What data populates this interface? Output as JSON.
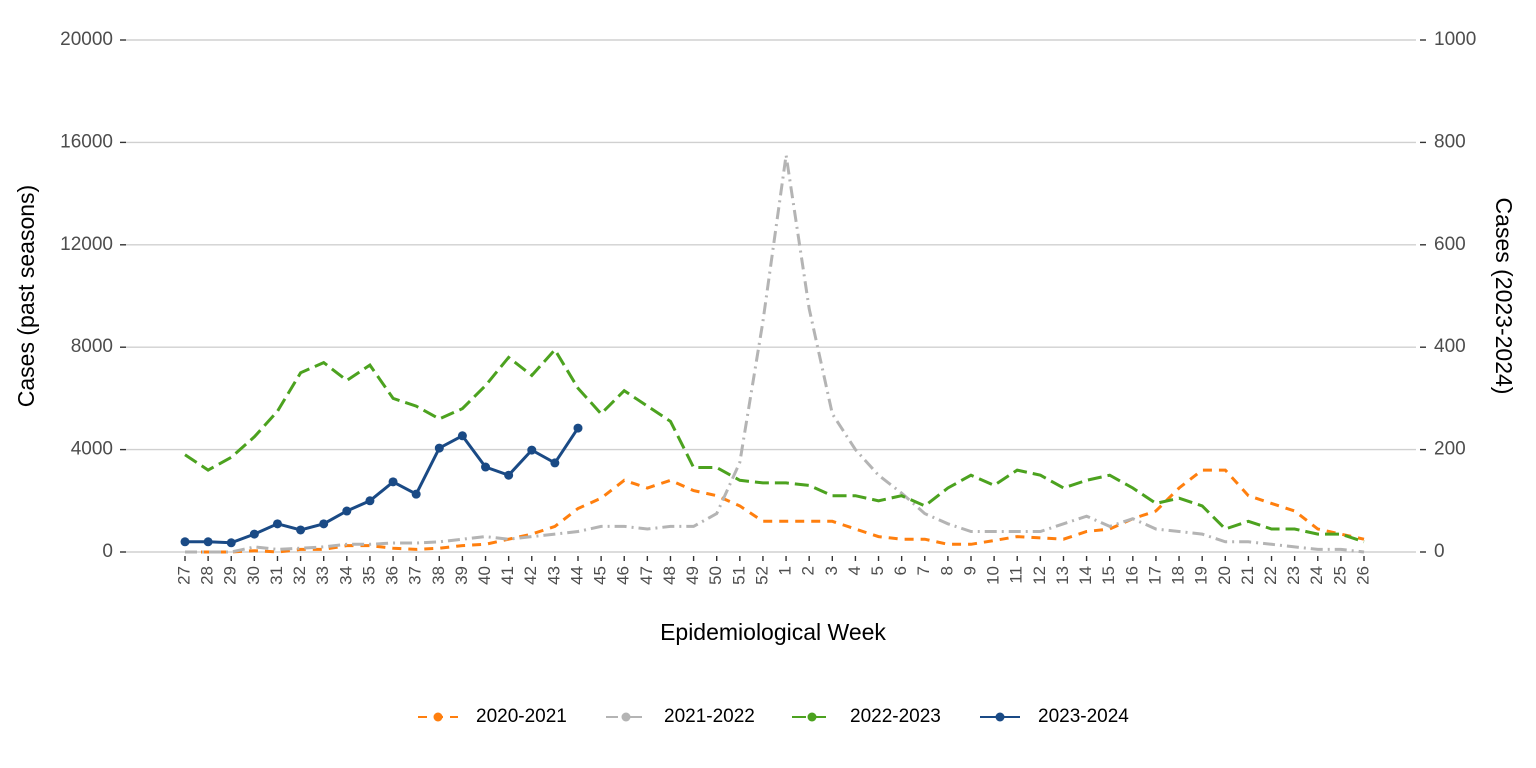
{
  "chart_data": {
    "type": "line",
    "x_label": "Epidemiological Week",
    "y_label": "Cases (past seasons)",
    "y2_label": "Cases (2023-2024)",
    "categories": [
      "27",
      "28",
      "29",
      "30",
      "31",
      "32",
      "33",
      "34",
      "35",
      "36",
      "37",
      "38",
      "39",
      "40",
      "41",
      "42",
      "43",
      "44",
      "45",
      "46",
      "47",
      "48",
      "49",
      "50",
      "51",
      "52",
      "1",
      "2",
      "3",
      "4",
      "5",
      "6",
      "7",
      "8",
      "9",
      "10",
      "11",
      "12",
      "13",
      "14",
      "15",
      "16",
      "17",
      "18",
      "19",
      "20",
      "21",
      "22",
      "23",
      "24",
      "25",
      "26"
    ],
    "ylim": [
      0,
      20000
    ],
    "yticks": [
      0,
      4000,
      8000,
      12000,
      16000,
      20000
    ],
    "y2lim": [
      0,
      1000
    ],
    "y2ticks": [
      0,
      200,
      400,
      600,
      800,
      1000
    ],
    "grid": true,
    "legend": "bottom",
    "series": [
      {
        "name": "2020-2021",
        "color": "#ff7f0e",
        "dash": "dashed",
        "values": [
          0,
          0,
          0,
          50,
          0,
          100,
          100,
          250,
          250,
          150,
          100,
          150,
          250,
          300,
          500,
          700,
          1000,
          1700,
          2100,
          2800,
          2500,
          2800,
          2400,
          2200,
          1800,
          1200,
          1200,
          1200,
          1200,
          900,
          600,
          500,
          500,
          300,
          300,
          450,
          600,
          550,
          500,
          800,
          900,
          1300,
          1600,
          2500,
          3200,
          3200,
          2200,
          1900,
          1600,
          900,
          700,
          500
        ]
      },
      {
        "name": "2021-2022",
        "color": "#b4b4b4",
        "dash": "dotdash",
        "values": [
          0,
          0,
          0,
          200,
          100,
          150,
          200,
          300,
          300,
          350,
          350,
          400,
          500,
          600,
          500,
          600,
          700,
          800,
          1000,
          1000,
          900,
          1000,
          1000,
          1500,
          3500,
          9000,
          15500,
          9500,
          5400,
          4000,
          3000,
          2300,
          1500,
          1100,
          800,
          800,
          800,
          800,
          1100,
          1400,
          1000,
          1300,
          900,
          800,
          700,
          400,
          400,
          300,
          200,
          100,
          100,
          0
        ]
      },
      {
        "name": "2022-2023",
        "color": "#4ca21f",
        "dash": "longdash",
        "values": [
          3800,
          3200,
          3700,
          4500,
          5500,
          7000,
          7400,
          6700,
          7300,
          6000,
          5700,
          5200,
          5600,
          6500,
          7600,
          6900,
          7900,
          6400,
          5400,
          6300,
          5700,
          5100,
          3300,
          3300,
          2800,
          2700,
          2700,
          2600,
          2200,
          2200,
          2000,
          2200,
          1800,
          2500,
          3000,
          2600,
          3200,
          3000,
          2500,
          2800,
          3000,
          2500,
          1900,
          2100,
          1800,
          900,
          1200,
          900,
          900,
          700,
          700,
          400
        ]
      },
      {
        "name": "2023-2024",
        "color": "#1a4a85",
        "dash": "solid",
        "axis": "y2",
        "marker": true,
        "values": [
          20,
          20,
          18,
          35,
          55,
          43,
          55,
          80,
          100,
          137,
          113,
          203,
          227,
          166,
          150,
          199,
          174,
          242,
          null,
          null,
          null,
          null,
          null,
          null,
          null,
          null,
          null,
          null,
          null,
          null,
          null,
          null,
          null,
          null,
          null,
          null,
          null,
          null,
          null,
          null,
          null,
          null,
          null,
          null,
          null,
          null,
          null,
          null,
          null,
          null,
          null,
          null
        ]
      }
    ]
  }
}
